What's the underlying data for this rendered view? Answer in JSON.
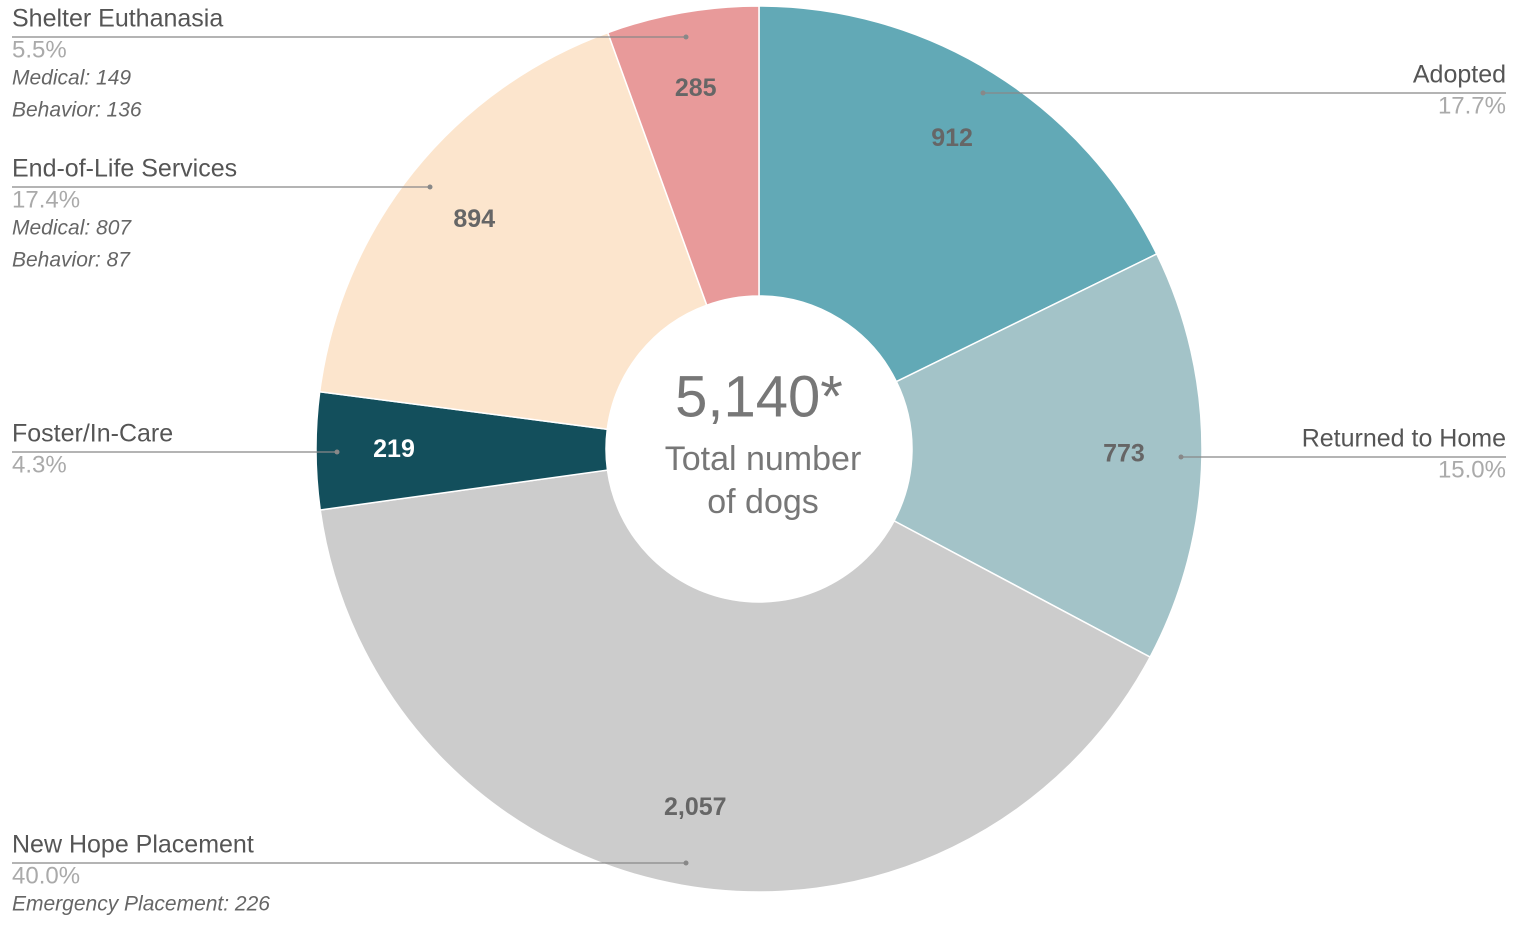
{
  "chart_data": {
    "type": "donut",
    "categories": [
      "Adopted",
      "Returned to Home",
      "New Hope Placement",
      "Foster/In-Care",
      "End-of-Life Services",
      "Shelter Euthanasia"
    ],
    "values": [
      912,
      773,
      2057,
      219,
      894,
      285
    ],
    "value_labels": [
      "912",
      "773",
      "2,057",
      "219",
      "894",
      "285"
    ],
    "percent_labels": [
      "17.7%",
      "15.0%",
      "40.0%",
      "4.3%",
      "17.4%",
      "5.5%"
    ],
    "details": [
      [],
      [],
      [
        "Emergency Placement: 226"
      ],
      [],
      [
        "Medical: 807",
        "Behavior: 87"
      ],
      [
        "Medical: 149",
        "Behavior: 136"
      ]
    ],
    "colors": [
      "#62a9b6",
      "#a3c3c8",
      "#cccccc",
      "#134f5c",
      "#fce5cd",
      "#e89a9a"
    ],
    "center_value": "5,140*",
    "center_label": [
      "Total number",
      "of dogs"
    ]
  }
}
